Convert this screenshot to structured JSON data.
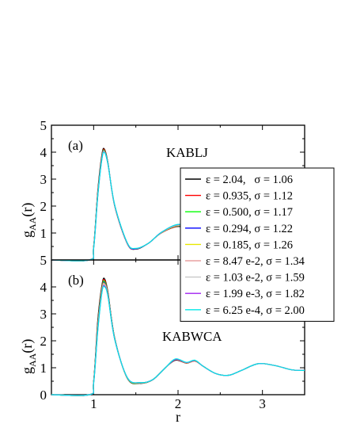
{
  "chart_data": [
    {
      "type": "line",
      "panel_label": "(a)",
      "annotation": "KABLJ",
      "ylabel_main": "g",
      "ylabel_sub": "AA",
      "ylabel_arg": "(r)",
      "xlim": [
        0.5,
        3.5
      ],
      "ylim": [
        0,
        5
      ],
      "y_ticks": [
        {
          "value": 1,
          "label": "1"
        },
        {
          "value": 2,
          "label": "2"
        },
        {
          "value": 3,
          "label": "3"
        },
        {
          "value": 4,
          "label": "4"
        },
        {
          "value": 5,
          "label": "5"
        }
      ],
      "y_bottom_label": "5",
      "x_ticks": [
        1,
        2,
        3
      ],
      "series": [
        {
          "name": "ε = 2.04,   σ = 1.06",
          "color": "#000000",
          "x": [
            0.5,
            0.95,
            1.0,
            1.05,
            1.1,
            1.13,
            1.17,
            1.25,
            1.4,
            1.5,
            1.65,
            1.8,
            2.0,
            2.2,
            2.4,
            2.7,
            3.0,
            3.5
          ],
          "y": [
            0,
            0,
            0.5,
            2.6,
            3.95,
            4.1,
            3.6,
            2.0,
            0.6,
            0.4,
            0.62,
            1.0,
            1.24,
            1.12,
            0.95,
            0.9,
            0.97,
            1.0
          ]
        },
        {
          "name": "ε = 0.935, σ = 1.12",
          "color": "#ff0000",
          "x": [
            0.5,
            0.95,
            1.0,
            1.05,
            1.1,
            1.13,
            1.17,
            1.25,
            1.4,
            1.5,
            1.65,
            1.8,
            2.0,
            2.2,
            2.4,
            2.7,
            3.0,
            3.5
          ],
          "y": [
            0,
            0,
            0.48,
            2.55,
            3.9,
            4.08,
            3.58,
            2.0,
            0.6,
            0.41,
            0.62,
            1.0,
            1.25,
            1.13,
            0.95,
            0.9,
            0.97,
            1.0
          ]
        },
        {
          "name": "ε = 0.500, σ = 1.17",
          "color": "#00ff00",
          "x": [
            0.5,
            0.95,
            1.0,
            1.05,
            1.1,
            1.13,
            1.17,
            1.25,
            1.4,
            1.5,
            1.65,
            1.8,
            2.0,
            2.2,
            2.4,
            2.7,
            3.0,
            3.5
          ],
          "y": [
            0,
            0,
            0.47,
            2.5,
            3.87,
            4.05,
            3.57,
            2.01,
            0.61,
            0.41,
            0.62,
            1.01,
            1.26,
            1.13,
            0.95,
            0.9,
            0.97,
            1.0
          ]
        },
        {
          "name": "ε = 0.294, σ = 1.22",
          "color": "#0000ff",
          "x": [
            0.5,
            0.95,
            1.0,
            1.05,
            1.1,
            1.13,
            1.17,
            1.25,
            1.4,
            1.5,
            1.65,
            1.8,
            2.0,
            2.2,
            2.4,
            2.7,
            3.0,
            3.5
          ],
          "y": [
            0,
            0,
            0.46,
            2.48,
            3.85,
            4.03,
            3.56,
            2.01,
            0.61,
            0.41,
            0.62,
            1.01,
            1.27,
            1.14,
            0.95,
            0.9,
            0.97,
            1.0
          ]
        },
        {
          "name": "ε = 0.185, σ = 1.26",
          "color": "#e8e800",
          "x": [
            0.5,
            0.95,
            1.0,
            1.05,
            1.1,
            1.13,
            1.17,
            1.25,
            1.4,
            1.5,
            1.65,
            1.8,
            2.0,
            2.2,
            2.4,
            2.7,
            3.0,
            3.5
          ],
          "y": [
            0,
            0,
            0.45,
            2.46,
            3.83,
            4.02,
            3.55,
            2.02,
            0.62,
            0.42,
            0.62,
            1.01,
            1.28,
            1.14,
            0.95,
            0.9,
            0.97,
            1.0
          ]
        },
        {
          "name": "ε = 8.47 e-2, σ = 1.34",
          "color": "#e8a0a0",
          "x": [
            0.5,
            0.95,
            1.0,
            1.05,
            1.1,
            1.13,
            1.17,
            1.25,
            1.4,
            1.5,
            1.65,
            1.8,
            2.0,
            2.2,
            2.4,
            2.7,
            3.0,
            3.5
          ],
          "y": [
            0,
            0,
            0.44,
            2.44,
            3.81,
            4.01,
            3.55,
            2.02,
            0.62,
            0.42,
            0.62,
            1.01,
            1.29,
            1.14,
            0.95,
            0.9,
            0.97,
            1.0
          ]
        },
        {
          "name": "ε = 1.03 e-2, σ = 1.59",
          "color": "#c8c8c8",
          "x": [
            0.5,
            0.95,
            1.0,
            1.05,
            1.1,
            1.13,
            1.17,
            1.25,
            1.4,
            1.5,
            1.65,
            1.8,
            2.0,
            2.2,
            2.4,
            2.7,
            3.0,
            3.5
          ],
          "y": [
            0,
            0,
            0.43,
            2.42,
            3.8,
            4.0,
            3.55,
            2.03,
            0.62,
            0.42,
            0.62,
            1.02,
            1.3,
            1.15,
            0.95,
            0.9,
            0.97,
            1.0
          ]
        },
        {
          "name": "ε = 1.99 e-3, σ = 1.82",
          "color": "#a020f0",
          "x": [
            0.5,
            0.95,
            1.0,
            1.05,
            1.1,
            1.13,
            1.17,
            1.25,
            1.4,
            1.5,
            1.65,
            1.8,
            2.0,
            2.2,
            2.4,
            2.7,
            3.0,
            3.5
          ],
          "y": [
            0,
            0,
            0.42,
            2.4,
            3.79,
            3.99,
            3.55,
            2.03,
            0.62,
            0.42,
            0.62,
            1.02,
            1.31,
            1.15,
            0.95,
            0.9,
            0.97,
            1.0
          ]
        },
        {
          "name": "ε = 6.25 e-4, σ = 2.00",
          "color": "#00e8e8",
          "x": [
            0.5,
            0.95,
            1.0,
            1.05,
            1.1,
            1.13,
            1.17,
            1.25,
            1.4,
            1.5,
            1.65,
            1.8,
            2.0,
            2.2,
            2.4,
            2.7,
            3.0,
            3.5
          ],
          "y": [
            0,
            0,
            0.42,
            2.4,
            3.78,
            3.98,
            3.55,
            2.04,
            0.63,
            0.43,
            0.62,
            1.02,
            1.32,
            1.16,
            0.95,
            0.9,
            0.97,
            1.0
          ]
        }
      ]
    },
    {
      "type": "line",
      "panel_label": "(b)",
      "annotation": "KABWCA",
      "ylabel_main": "g",
      "ylabel_sub": "AA",
      "ylabel_arg": "(r)",
      "xlabel": "r",
      "xlim": [
        0.5,
        3.5
      ],
      "ylim": [
        0,
        5
      ],
      "y_ticks": [
        {
          "value": 0,
          "label": "0"
        },
        {
          "value": 1,
          "label": "1"
        },
        {
          "value": 2,
          "label": "2"
        },
        {
          "value": 3,
          "label": "3"
        },
        {
          "value": 4,
          "label": "4"
        }
      ],
      "x_ticks": [
        1,
        2,
        3
      ],
      "series": [
        {
          "name": "ε = 2.04,   σ = 1.06",
          "color": "#000000",
          "x": [
            0.5,
            0.95,
            1.0,
            1.05,
            1.1,
            1.13,
            1.17,
            1.25,
            1.4,
            1.55,
            1.7,
            1.85,
            1.97,
            2.1,
            2.2,
            2.3,
            2.45,
            2.6,
            2.75,
            2.95,
            3.15,
            3.35,
            3.5
          ],
          "y": [
            0,
            0,
            0.5,
            2.8,
            4.1,
            4.3,
            3.8,
            2.1,
            0.6,
            0.42,
            0.55,
            1.0,
            1.28,
            1.17,
            1.25,
            1.05,
            0.78,
            0.72,
            0.9,
            1.15,
            1.08,
            0.92,
            0.9
          ]
        },
        {
          "name": "ε = 0.935, σ = 1.12",
          "color": "#ff0000",
          "x": [
            0.5,
            0.95,
            1.0,
            1.05,
            1.1,
            1.13,
            1.17,
            1.25,
            1.4,
            1.55,
            1.7,
            1.85,
            1.97,
            2.1,
            2.2,
            2.3,
            2.45,
            2.6,
            2.75,
            2.95,
            3.15,
            3.35,
            3.5
          ],
          "y": [
            0,
            0,
            0.48,
            2.7,
            4.05,
            4.25,
            3.76,
            2.08,
            0.61,
            0.43,
            0.56,
            1.0,
            1.29,
            1.17,
            1.25,
            1.05,
            0.78,
            0.72,
            0.9,
            1.15,
            1.08,
            0.92,
            0.9
          ]
        },
        {
          "name": "ε = 0.500, σ = 1.17",
          "color": "#00ff00",
          "x": [
            0.5,
            0.95,
            1.0,
            1.05,
            1.1,
            1.13,
            1.17,
            1.25,
            1.4,
            1.55,
            1.7,
            1.85,
            1.97,
            2.1,
            2.2,
            2.3,
            2.45,
            2.6,
            2.75,
            2.95,
            3.15,
            3.35,
            3.5
          ],
          "y": [
            0,
            0,
            0.47,
            2.65,
            4.0,
            4.2,
            3.74,
            2.07,
            0.61,
            0.43,
            0.56,
            1.0,
            1.3,
            1.18,
            1.26,
            1.05,
            0.78,
            0.72,
            0.9,
            1.15,
            1.08,
            0.92,
            0.9
          ]
        },
        {
          "name": "ε = 0.294, σ = 1.22",
          "color": "#0000ff",
          "x": [
            0.5,
            0.95,
            1.0,
            1.05,
            1.1,
            1.13,
            1.17,
            1.25,
            1.4,
            1.55,
            1.7,
            1.85,
            1.97,
            2.1,
            2.2,
            2.3,
            2.45,
            2.6,
            2.75,
            2.95,
            3.15,
            3.35,
            3.5
          ],
          "y": [
            0,
            0,
            0.46,
            2.6,
            3.96,
            4.15,
            3.72,
            2.06,
            0.62,
            0.44,
            0.56,
            1.0,
            1.3,
            1.18,
            1.26,
            1.05,
            0.78,
            0.72,
            0.9,
            1.15,
            1.08,
            0.92,
            0.9
          ]
        },
        {
          "name": "ε = 0.185, σ = 1.26",
          "color": "#e8e800",
          "x": [
            0.5,
            0.95,
            1.0,
            1.05,
            1.1,
            1.13,
            1.17,
            1.25,
            1.4,
            1.55,
            1.7,
            1.85,
            1.97,
            2.1,
            2.2,
            2.3,
            2.45,
            2.6,
            2.75,
            2.95,
            3.15,
            3.35,
            3.5
          ],
          "y": [
            0,
            0,
            0.45,
            2.55,
            3.93,
            4.12,
            3.7,
            2.06,
            0.62,
            0.44,
            0.56,
            1.0,
            1.31,
            1.18,
            1.26,
            1.05,
            0.78,
            0.72,
            0.9,
            1.15,
            1.08,
            0.92,
            0.9
          ]
        },
        {
          "name": "ε = 8.47 e-2, σ = 1.34",
          "color": "#e8a0a0",
          "x": [
            0.5,
            0.95,
            1.0,
            1.05,
            1.1,
            1.13,
            1.17,
            1.25,
            1.4,
            1.55,
            1.7,
            1.85,
            1.97,
            2.1,
            2.2,
            2.3,
            2.45,
            2.6,
            2.75,
            2.95,
            3.15,
            3.35,
            3.5
          ],
          "y": [
            0,
            0,
            0.44,
            2.5,
            3.9,
            4.1,
            3.68,
            2.05,
            0.62,
            0.44,
            0.56,
            1.0,
            1.31,
            1.19,
            1.27,
            1.05,
            0.78,
            0.72,
            0.9,
            1.15,
            1.08,
            0.92,
            0.9
          ]
        },
        {
          "name": "ε = 1.03 e-2, σ = 1.59",
          "color": "#c8c8c8",
          "x": [
            0.5,
            0.95,
            1.0,
            1.05,
            1.1,
            1.13,
            1.17,
            1.25,
            1.4,
            1.55,
            1.7,
            1.85,
            1.97,
            2.1,
            2.2,
            2.3,
            2.45,
            2.6,
            2.75,
            2.95,
            3.15,
            3.35,
            3.5
          ],
          "y": [
            0,
            0,
            0.43,
            2.46,
            3.86,
            4.06,
            3.66,
            2.05,
            0.63,
            0.45,
            0.56,
            1.0,
            1.32,
            1.19,
            1.27,
            1.05,
            0.78,
            0.72,
            0.9,
            1.15,
            1.08,
            0.92,
            0.9
          ]
        },
        {
          "name": "ε = 1.99 e-3, σ = 1.82",
          "color": "#a020f0",
          "x": [
            0.5,
            0.95,
            1.0,
            1.05,
            1.1,
            1.13,
            1.17,
            1.25,
            1.4,
            1.55,
            1.7,
            1.85,
            1.97,
            2.1,
            2.2,
            2.3,
            2.45,
            2.6,
            2.75,
            2.95,
            3.15,
            3.35,
            3.5
          ],
          "y": [
            0,
            0,
            0.42,
            2.42,
            3.84,
            4.03,
            3.65,
            2.05,
            0.63,
            0.45,
            0.56,
            1.0,
            1.32,
            1.19,
            1.27,
            1.05,
            0.78,
            0.72,
            0.9,
            1.15,
            1.08,
            0.92,
            0.9
          ]
        },
        {
          "name": "ε = 6.25 e-4, σ = 2.00",
          "color": "#00e8e8",
          "x": [
            0.5,
            0.95,
            1.0,
            1.05,
            1.1,
            1.13,
            1.17,
            1.25,
            1.4,
            1.55,
            1.7,
            1.85,
            1.97,
            2.1,
            2.2,
            2.3,
            2.45,
            2.6,
            2.75,
            2.95,
            3.15,
            3.35,
            3.5
          ],
          "y": [
            0,
            0,
            0.42,
            2.4,
            3.82,
            4.0,
            3.64,
            2.05,
            0.63,
            0.45,
            0.56,
            1.0,
            1.33,
            1.2,
            1.28,
            1.05,
            0.78,
            0.72,
            0.9,
            1.15,
            1.08,
            0.92,
            0.9
          ]
        }
      ]
    }
  ]
}
